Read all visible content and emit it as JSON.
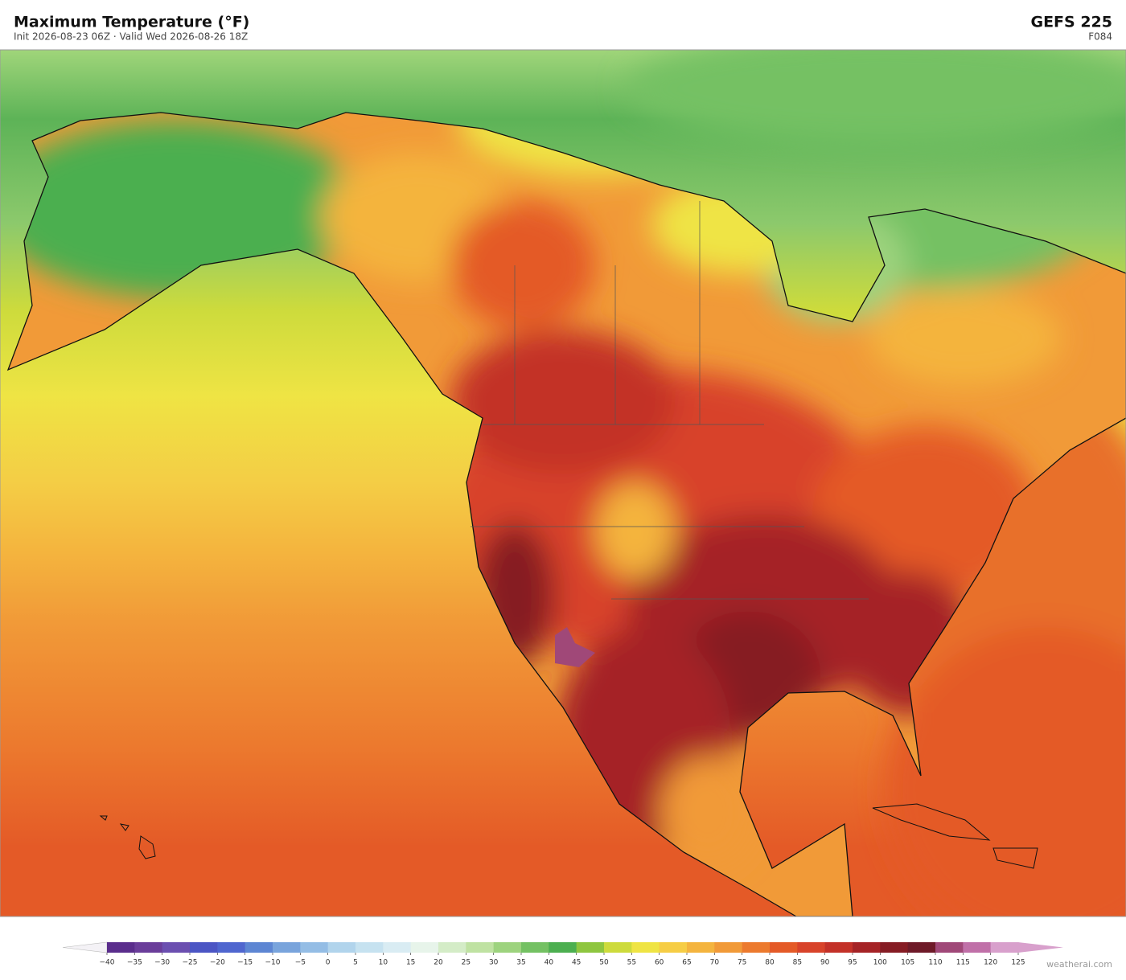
{
  "header": {
    "title": "Maximum Temperature  (°F)",
    "subtitle": "Init 2026-08-23 06Z  ·  Valid Wed 2026-08-26 18Z",
    "model": "GEFS  225",
    "forecast_hour": "F084"
  },
  "colorbar": {
    "ticks": [
      {
        "value": -40,
        "label": "−40"
      },
      {
        "value": -35,
        "label": "−35"
      },
      {
        "value": -30,
        "label": "−30"
      },
      {
        "value": -25,
        "label": "−25"
      },
      {
        "value": -20,
        "label": "−20"
      },
      {
        "value": -15,
        "label": "−15"
      },
      {
        "value": -10,
        "label": "−10"
      },
      {
        "value": -5,
        "label": "−5"
      },
      0,
      5,
      10,
      15,
      20,
      25,
      30,
      35,
      40,
      45,
      50,
      55,
      60,
      65,
      70,
      75,
      80,
      85,
      90,
      95,
      100,
      105,
      110,
      115,
      120,
      125
    ],
    "colors": [
      "#5a2d8c",
      "#6a3d9a",
      "#6b4fb0",
      "#4b55c4",
      "#4f66cf",
      "#5d86d3",
      "#79a4dc",
      "#94bde5",
      "#b1d4ec",
      "#c6e2f0",
      "#d9ecf3",
      "#e7f4ea",
      "#d4ecc7",
      "#bfe2a2",
      "#9dd37e",
      "#74c163",
      "#4caf50",
      "#8ec63f",
      "#cddb3c",
      "#efe444",
      "#f6cd45",
      "#f4b43e",
      "#f19a38",
      "#ec7a2e",
      "#e45a27",
      "#d8432a",
      "#c33128",
      "#a52326",
      "#861c24",
      "#6e1a28",
      "#a04878",
      "#c070a8",
      "#d8a0cc"
    ],
    "under_color": "#f4f2f6",
    "over_color": "#d8a0cc"
  },
  "credit": "weatherai.com"
}
